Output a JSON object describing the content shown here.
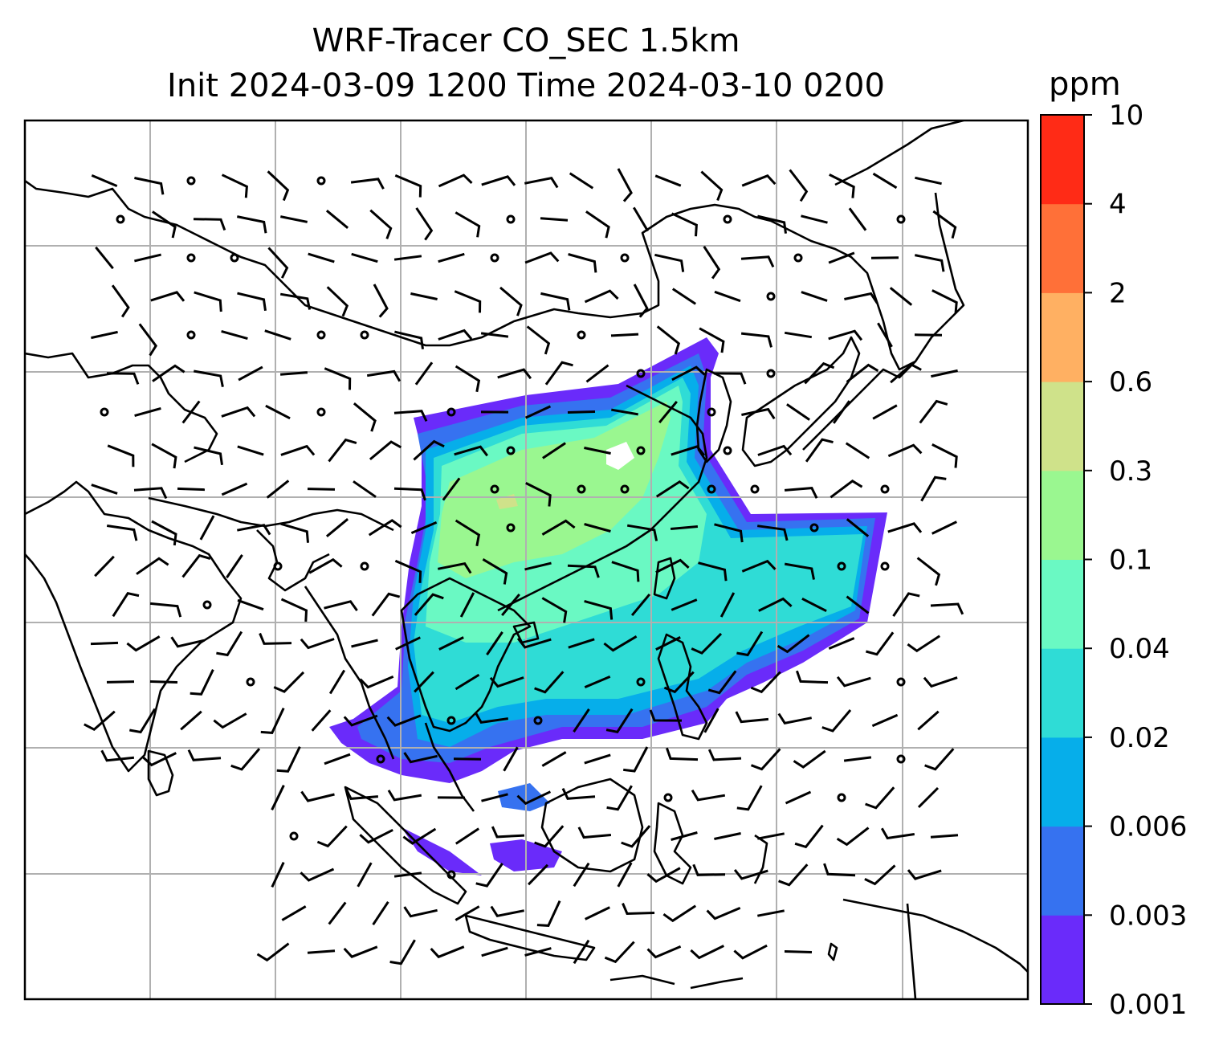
{
  "title": {
    "line1": "WRF-Tracer CO_SEC 1.5km",
    "line2": "Init 2024-03-09 1200 Time 2024-03-10 0200"
  },
  "colorbar": {
    "unit": "ppm",
    "levels": [
      "0.001",
      "0.003",
      "0.006",
      "0.02",
      "0.04",
      "0.1",
      "0.3",
      "0.6",
      "2",
      "4",
      "10"
    ],
    "colors": [
      "#6a2bfa",
      "#3672f0",
      "#06aeea",
      "#2fdcd6",
      "#6af9c3",
      "#9af790",
      "#cfe28a",
      "#ffb062",
      "#ff7038",
      "#ff2b16"
    ]
  },
  "map": {
    "type": "filled-contour with wind barbs",
    "gridlines": true,
    "coastline_color": "#000000",
    "barb_color": "#000000"
  }
}
